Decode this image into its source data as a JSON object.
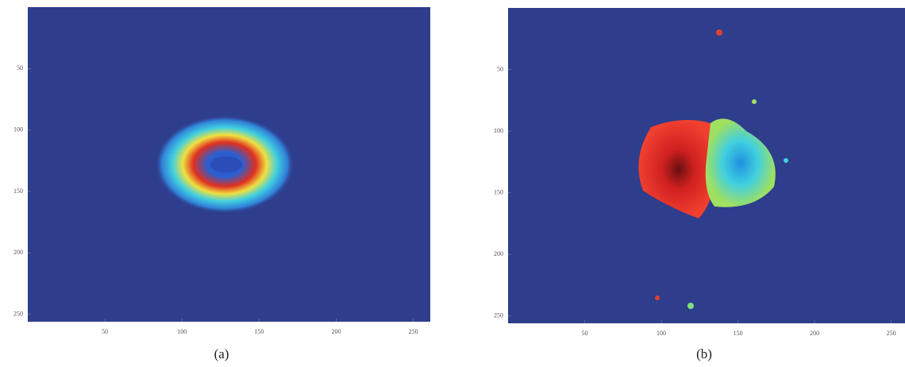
{
  "chart_data": [
    {
      "type": "image",
      "caption": "(a)",
      "xlim": [
        0,
        261
      ],
      "ylim": [
        0,
        256
      ],
      "xticks": [
        50,
        100,
        150,
        200,
        250
      ],
      "yticks": [
        50,
        100,
        150,
        200,
        250
      ]
    },
    {
      "type": "image",
      "caption": "(b)",
      "xlim": [
        0,
        259
      ],
      "ylim": [
        0,
        256
      ],
      "xticks": [
        50,
        100,
        150,
        200,
        250
      ],
      "yticks": [
        50,
        100,
        150,
        200,
        250
      ]
    }
  ]
}
